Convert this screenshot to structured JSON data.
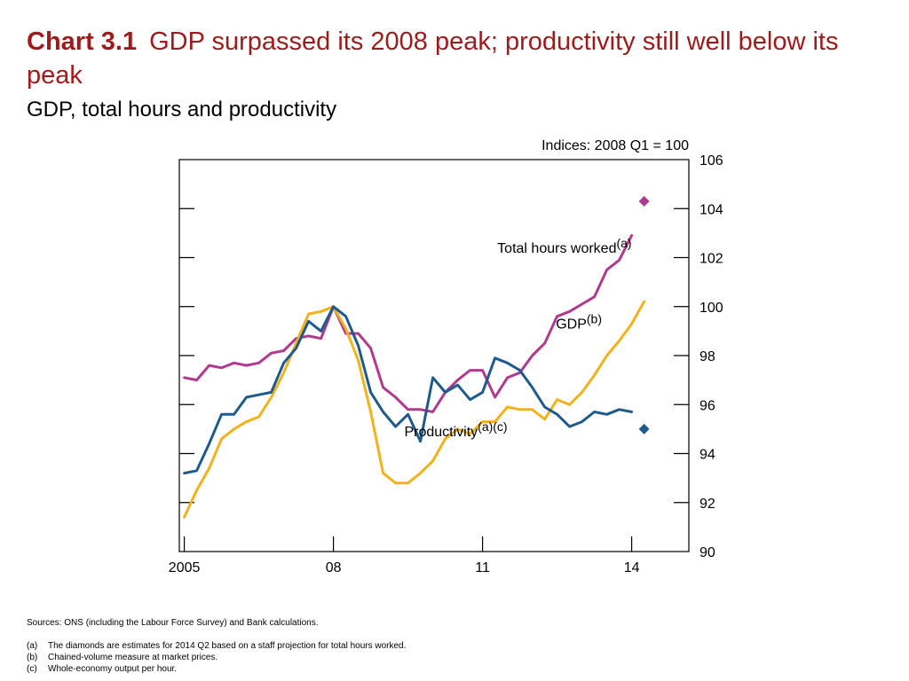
{
  "header": {
    "chart_label": "Chart 3.1",
    "title": "GDP surpassed its 2008 peak;  productivity still well below its peak",
    "subtitle": "GDP, total hours and productivity"
  },
  "footnotes": {
    "sources": "Sources:  ONS (including the Labour Force Survey) and Bank calculations.",
    "notes": [
      {
        "key": "(a)",
        "text": "The diamonds are estimates for 2014 Q2 based on a staff projection for total hours worked."
      },
      {
        "key": "(b)",
        "text": "Chained-volume measure at market prices."
      },
      {
        "key": "(c)",
        "text": "Whole-economy output per hour."
      }
    ]
  },
  "chart_data": {
    "type": "line",
    "units_label": "Indices:  2008 Q1 = 100",
    "ylim": [
      90,
      106
    ],
    "xlim": [
      2004.9,
      2015.15
    ],
    "yticks": [
      90,
      92,
      94,
      96,
      98,
      100,
      102,
      104,
      106
    ],
    "xticks": [
      {
        "value": 2005.0,
        "label": "2005"
      },
      {
        "value": 2008.0,
        "label": "08"
      },
      {
        "value": 2011.0,
        "label": "11"
      },
      {
        "value": 2014.0,
        "label": "14"
      }
    ],
    "series": [
      {
        "name": "Total hours worked",
        "superscript": "(a)",
        "color": "#b03a8e",
        "label_anchor": [
          2014.0,
          102.2
        ],
        "x": [
          2005.0,
          2005.25,
          2005.5,
          2005.75,
          2006.0,
          2006.25,
          2006.5,
          2006.75,
          2007.0,
          2007.25,
          2007.5,
          2007.75,
          2008.0,
          2008.25,
          2008.5,
          2008.75,
          2009.0,
          2009.25,
          2009.5,
          2009.75,
          2010.0,
          2010.25,
          2010.5,
          2010.75,
          2011.0,
          2011.25,
          2011.5,
          2011.75,
          2012.0,
          2012.25,
          2012.5,
          2012.75,
          2013.0,
          2013.25,
          2013.5,
          2013.75,
          2014.0
        ],
        "values": [
          97.1,
          97.0,
          97.6,
          97.5,
          97.7,
          97.6,
          97.7,
          98.1,
          98.2,
          98.7,
          98.8,
          98.7,
          100.0,
          98.9,
          98.9,
          98.3,
          96.7,
          96.3,
          95.8,
          95.8,
          95.7,
          96.5,
          97.0,
          97.4,
          97.4,
          96.3,
          97.1,
          97.3,
          98.0,
          98.5,
          99.6,
          99.8,
          100.1,
          100.4,
          101.5,
          101.9,
          102.9
        ],
        "estimate": {
          "x": 2014.25,
          "y": 104.3
        }
      },
      {
        "name": "GDP",
        "superscript": "(b)",
        "color": "#f2b21b",
        "label_anchor": [
          2013.4,
          99.1
        ],
        "x": [
          2005.0,
          2005.25,
          2005.5,
          2005.75,
          2006.0,
          2006.25,
          2006.5,
          2006.75,
          2007.0,
          2007.25,
          2007.5,
          2007.75,
          2008.0,
          2008.25,
          2008.5,
          2008.75,
          2009.0,
          2009.25,
          2009.5,
          2009.75,
          2010.0,
          2010.25,
          2010.5,
          2010.75,
          2011.0,
          2011.25,
          2011.5,
          2011.75,
          2012.0,
          2012.25,
          2012.5,
          2012.75,
          2013.0,
          2013.25,
          2013.5,
          2013.75,
          2014.0
        ],
        "values": [
          91.4,
          92.5,
          93.4,
          94.6,
          95.0,
          95.3,
          95.5,
          96.3,
          97.3,
          98.5,
          99.7,
          99.8,
          100.0,
          99.1,
          97.8,
          95.7,
          93.2,
          92.8,
          92.8,
          93.2,
          93.7,
          94.6,
          95.0,
          94.8,
          95.3,
          95.3,
          95.9,
          95.8,
          95.8,
          95.4,
          96.2,
          96.0,
          96.5,
          97.2,
          98.0,
          98.6,
          99.3
        ],
        "extra": {
          "x": 2014.25,
          "y": 100.2
        }
      },
      {
        "name": "Productivity",
        "superscript": "(a)(c)",
        "color": "#1f5a8c",
        "label_anchor": [
          2011.5,
          94.7
        ],
        "x": [
          2005.0,
          2005.25,
          2005.5,
          2005.75,
          2006.0,
          2006.25,
          2006.5,
          2006.75,
          2007.0,
          2007.25,
          2007.5,
          2007.75,
          2008.0,
          2008.25,
          2008.5,
          2008.75,
          2009.0,
          2009.25,
          2009.5,
          2009.75,
          2010.0,
          2010.25,
          2010.5,
          2010.75,
          2011.0,
          2011.25,
          2011.5,
          2011.75,
          2012.0,
          2012.25,
          2012.5,
          2012.75,
          2013.0,
          2013.25,
          2013.5,
          2013.75,
          2014.0
        ],
        "values": [
          93.2,
          93.3,
          94.4,
          95.6,
          95.6,
          96.3,
          96.4,
          96.5,
          97.7,
          98.3,
          99.4,
          99.0,
          100.0,
          99.6,
          98.4,
          96.5,
          95.7,
          95.1,
          95.6,
          94.5,
          97.1,
          96.5,
          96.8,
          96.2,
          96.5,
          97.9,
          97.7,
          97.4,
          96.7,
          95.9,
          95.6,
          95.1,
          95.3,
          95.7,
          95.6,
          95.8,
          95.7
        ],
        "estimate": {
          "x": 2014.25,
          "y": 95.0
        }
      }
    ]
  }
}
